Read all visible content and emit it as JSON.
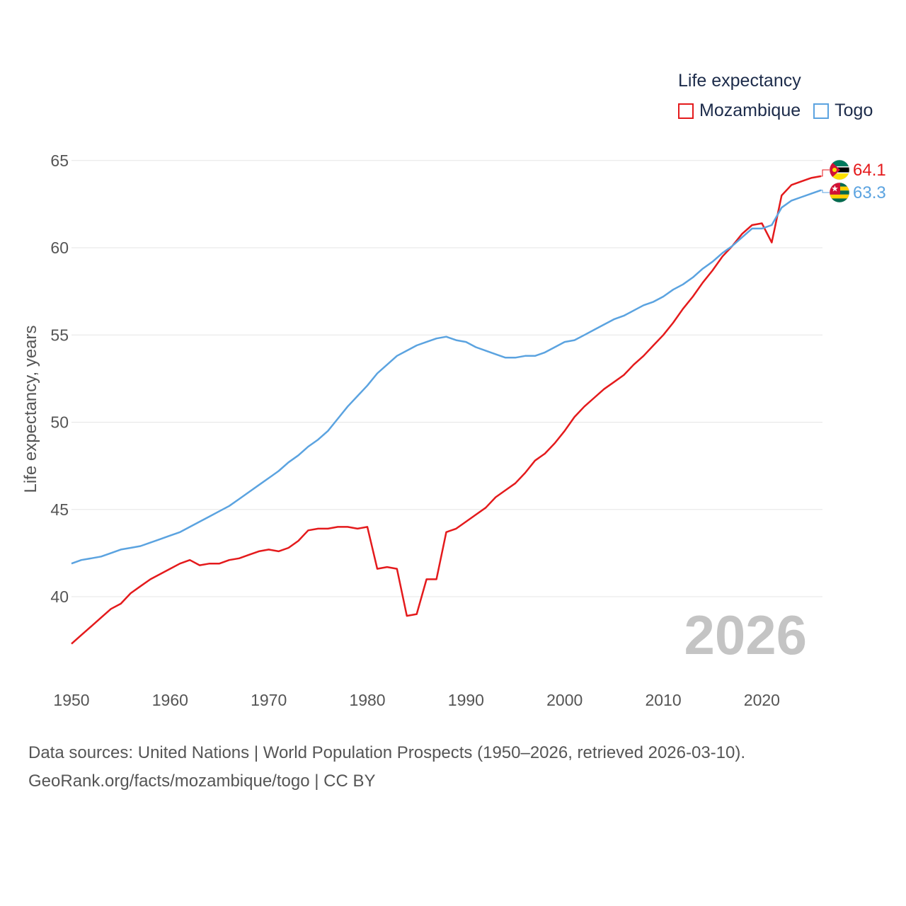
{
  "chart_data": {
    "type": "line",
    "title": "",
    "xlabel": "",
    "ylabel": "Life expectancy, years",
    "xlim": [
      1950,
      2026
    ],
    "ylim": [
      35,
      67
    ],
    "x_ticks": [
      "1950",
      "1960",
      "1970",
      "1980",
      "1990",
      "2000",
      "2010",
      "2020"
    ],
    "y_ticks": [
      "40",
      "45",
      "50",
      "55",
      "60",
      "65"
    ],
    "grid": true,
    "legend_title": "Life expectancy",
    "legend_position": "top-right",
    "current_year": "2026",
    "x": [
      1950,
      1951,
      1952,
      1953,
      1954,
      1955,
      1956,
      1957,
      1958,
      1959,
      1960,
      1961,
      1962,
      1963,
      1964,
      1965,
      1966,
      1967,
      1968,
      1969,
      1970,
      1971,
      1972,
      1973,
      1974,
      1975,
      1976,
      1977,
      1978,
      1979,
      1980,
      1981,
      1982,
      1983,
      1984,
      1985,
      1986,
      1987,
      1988,
      1989,
      1990,
      1991,
      1992,
      1993,
      1994,
      1995,
      1996,
      1997,
      1998,
      1999,
      2000,
      2001,
      2002,
      2003,
      2004,
      2005,
      2006,
      2007,
      2008,
      2009,
      2010,
      2011,
      2012,
      2013,
      2014,
      2015,
      2016,
      2017,
      2018,
      2019,
      2020,
      2021,
      2022,
      2023,
      2024,
      2025,
      2026
    ],
    "series": [
      {
        "name": "Mozambique",
        "color": "#e41a1c",
        "end_label": "64.1",
        "flag": "mozambique-flag",
        "values": [
          37.3,
          37.8,
          38.3,
          38.8,
          39.3,
          39.6,
          40.2,
          40.6,
          41.0,
          41.3,
          41.6,
          41.9,
          42.1,
          41.8,
          41.9,
          41.9,
          42.1,
          42.2,
          42.4,
          42.6,
          42.7,
          42.6,
          42.8,
          43.2,
          43.8,
          43.9,
          43.9,
          44.0,
          44.0,
          43.9,
          44.0,
          41.6,
          41.7,
          41.6,
          38.9,
          39.0,
          41.0,
          41.0,
          43.7,
          43.9,
          44.3,
          44.7,
          45.1,
          45.7,
          46.1,
          46.5,
          47.1,
          47.8,
          48.2,
          48.8,
          49.5,
          50.3,
          50.9,
          51.4,
          51.9,
          52.3,
          52.7,
          53.3,
          53.8,
          54.4,
          55.0,
          55.7,
          56.5,
          57.2,
          58.0,
          58.7,
          59.5,
          60.1,
          60.8,
          61.3,
          61.4,
          60.3,
          63.0,
          63.6,
          63.8,
          64.0,
          64.1
        ]
      },
      {
        "name": "Togo",
        "color": "#5ba3e0",
        "end_label": "63.3",
        "flag": "togo-flag",
        "values": [
          41.9,
          42.1,
          42.2,
          42.3,
          42.5,
          42.7,
          42.8,
          42.9,
          43.1,
          43.3,
          43.5,
          43.7,
          44.0,
          44.3,
          44.6,
          44.9,
          45.2,
          45.6,
          46.0,
          46.4,
          46.8,
          47.2,
          47.7,
          48.1,
          48.6,
          49.0,
          49.5,
          50.2,
          50.9,
          51.5,
          52.1,
          52.8,
          53.3,
          53.8,
          54.1,
          54.4,
          54.6,
          54.8,
          54.9,
          54.7,
          54.6,
          54.3,
          54.1,
          53.9,
          53.7,
          53.7,
          53.8,
          53.8,
          54.0,
          54.3,
          54.6,
          54.7,
          55.0,
          55.3,
          55.6,
          55.9,
          56.1,
          56.4,
          56.7,
          56.9,
          57.2,
          57.6,
          57.9,
          58.3,
          58.8,
          59.2,
          59.7,
          60.1,
          60.6,
          61.1,
          61.1,
          61.3,
          62.3,
          62.7,
          62.9,
          63.1,
          63.3
        ]
      }
    ]
  },
  "footer": {
    "sources": "Data sources: United Nations | World Population Prospects (1950–2026, retrieved 2026-03-10).",
    "attribution": "GeoRank.org/facts/mozambique/togo | CC BY"
  }
}
